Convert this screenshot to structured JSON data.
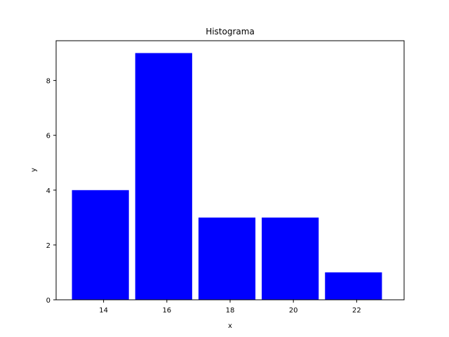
{
  "chart_data": {
    "type": "bar",
    "title": "Histograma",
    "xlabel": "x",
    "ylabel": "y",
    "bars": [
      {
        "x0": 13.0,
        "x1": 14.8,
        "value": 4
      },
      {
        "x0": 15.0,
        "x1": 16.8,
        "value": 9
      },
      {
        "x0": 17.0,
        "x1": 18.8,
        "value": 3
      },
      {
        "x0": 19.0,
        "x1": 20.8,
        "value": 3
      },
      {
        "x0": 21.0,
        "x1": 22.8,
        "value": 1
      }
    ],
    "xlim": [
      12.5,
      23.5
    ],
    "ylim": [
      0,
      9.45
    ],
    "xticks": [
      14,
      16,
      18,
      20,
      22
    ],
    "yticks": [
      0,
      2,
      4,
      6,
      8
    ],
    "bar_color": "#0000ff",
    "grid": false,
    "legend": "none"
  }
}
